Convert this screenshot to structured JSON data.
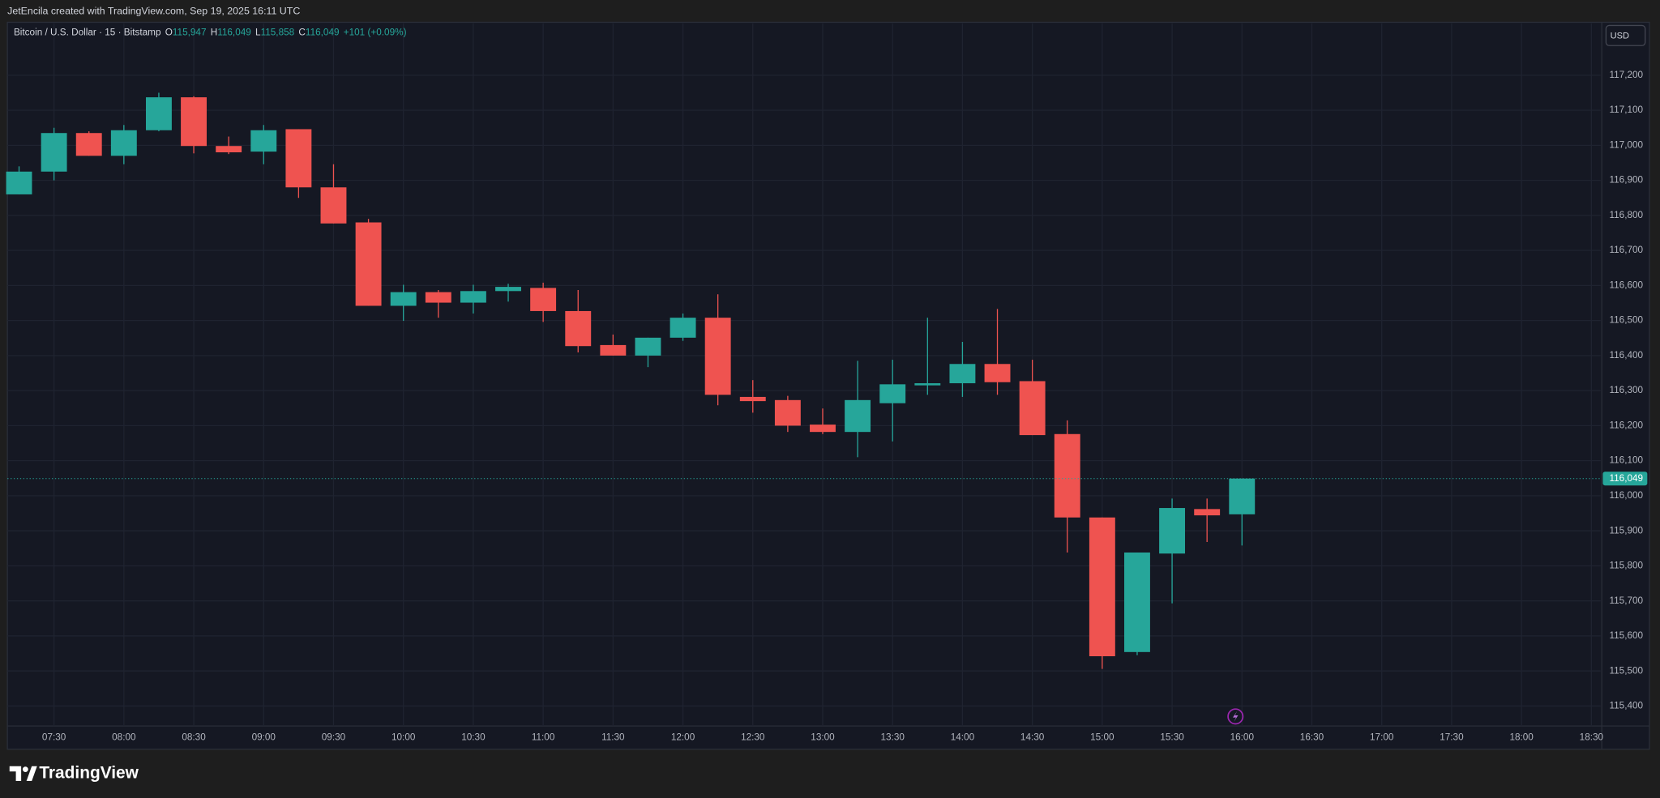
{
  "top_bar": {
    "text": "JetEncila created with TradingView.com, Sep 19, 2025 16:11 UTC"
  },
  "chart_data": {
    "type": "candlestick",
    "title": "Bitcoin / U.S. Dollar · 15 · Bitstamp",
    "ohlc_legend": [
      {
        "key": "O",
        "label": "115,947"
      },
      {
        "key": "H",
        "label": "116,049"
      },
      {
        "key": "L",
        "label": "115,858"
      },
      {
        "key": "C",
        "label": "116,049"
      }
    ],
    "change": "+101 (+0.09%)",
    "currency": "USD",
    "up_color": "#26a69a",
    "down_color": "#ef5350",
    "grid": true,
    "x": [
      "07:15",
      "07:30",
      "07:45",
      "08:00",
      "08:15",
      "08:30",
      "08:45",
      "09:00",
      "09:15",
      "09:30",
      "09:45",
      "10:00",
      "10:15",
      "10:30",
      "10:45",
      "11:00",
      "11:15",
      "11:30",
      "11:45",
      "12:00",
      "12:15",
      "12:30",
      "12:45",
      "13:00",
      "13:15",
      "13:30",
      "13:45",
      "14:00",
      "14:15",
      "14:30",
      "14:45",
      "15:00",
      "15:15",
      "15:30",
      "15:45",
      "16:00"
    ],
    "open": [
      116860,
      116925,
      117035,
      116970,
      117043,
      117137,
      116998,
      116982,
      117046,
      116880,
      116780,
      116542,
      116581,
      116551,
      116584,
      116593,
      116527,
      116430,
      116400,
      116451,
      116508,
      116282,
      116273,
      116203,
      116182,
      116264,
      116315,
      116321,
      116376,
      116327,
      116176,
      115938,
      115554,
      115835,
      115962,
      115947
    ],
    "high": [
      116940,
      117050,
      117040,
      117058,
      117150,
      117140,
      117025,
      117058,
      117046,
      116946,
      116790,
      116602,
      116587,
      116602,
      116605,
      116608,
      116587,
      116460,
      116451,
      116520,
      116575,
      116330,
      116285,
      116249,
      116385,
      116388,
      116508,
      116439,
      116533,
      116388,
      116215,
      115938,
      115838,
      115992,
      115992,
      116049
    ],
    "low": [
      116860,
      116900,
      116970,
      116946,
      117040,
      116977,
      116975,
      116946,
      116850,
      116777,
      116542,
      116499,
      116508,
      116520,
      116554,
      116496,
      116409,
      116400,
      116367,
      116442,
      116258,
      116237,
      116182,
      116176,
      116110,
      116155,
      116288,
      116282,
      116288,
      116173,
      115838,
      115506,
      115545,
      115693,
      115868,
      115858
    ],
    "close": [
      116925,
      117035,
      116970,
      117043,
      117137,
      116998,
      116980,
      117043,
      116880,
      116777,
      116542,
      116581,
      116551,
      116584,
      116596,
      116527,
      116427,
      116400,
      116451,
      116508,
      116288,
      116270,
      116200,
      116182,
      116273,
      116318,
      116321,
      116376,
      116324,
      116173,
      115938,
      115542,
      115838,
      115965,
      115944,
      116049
    ],
    "xlim": [
      "07:10",
      "18:34"
    ],
    "xticks": [
      "07:30",
      "08:00",
      "08:30",
      "09:00",
      "09:30",
      "10:00",
      "10:30",
      "11:00",
      "11:30",
      "12:00",
      "12:30",
      "13:00",
      "13:30",
      "14:00",
      "14:30",
      "15:00",
      "15:30",
      "16:00",
      "16:30",
      "17:00",
      "17:30",
      "18:00",
      "18:30"
    ],
    "ylim": [
      115343,
      117348
    ],
    "yticks": [
      {
        "value": 115400,
        "label": "115,400"
      },
      {
        "value": 115500,
        "label": "115,500"
      },
      {
        "value": 115600,
        "label": "115,600"
      },
      {
        "value": 115700,
        "label": "115,700"
      },
      {
        "value": 115800,
        "label": "115,800"
      },
      {
        "value": 115900,
        "label": "115,900"
      },
      {
        "value": 116000,
        "label": "116,000"
      },
      {
        "value": 116100,
        "label": "116,100"
      },
      {
        "value": 116200,
        "label": "116,200"
      },
      {
        "value": 116300,
        "label": "116,300"
      },
      {
        "value": 116400,
        "label": "116,400"
      },
      {
        "value": 116500,
        "label": "116,500"
      },
      {
        "value": 116600,
        "label": "116,600"
      },
      {
        "value": 116700,
        "label": "116,700"
      },
      {
        "value": 116800,
        "label": "116,800"
      },
      {
        "value": 116900,
        "label": "116,900"
      },
      {
        "value": 117000,
        "label": "117,000"
      },
      {
        "value": 117100,
        "label": "117,100"
      },
      {
        "value": 117200,
        "label": "117,200"
      }
    ],
    "last_price": {
      "value": 116049,
      "label": "116,049"
    }
  },
  "footer": {
    "logo_text": "TradingView"
  }
}
